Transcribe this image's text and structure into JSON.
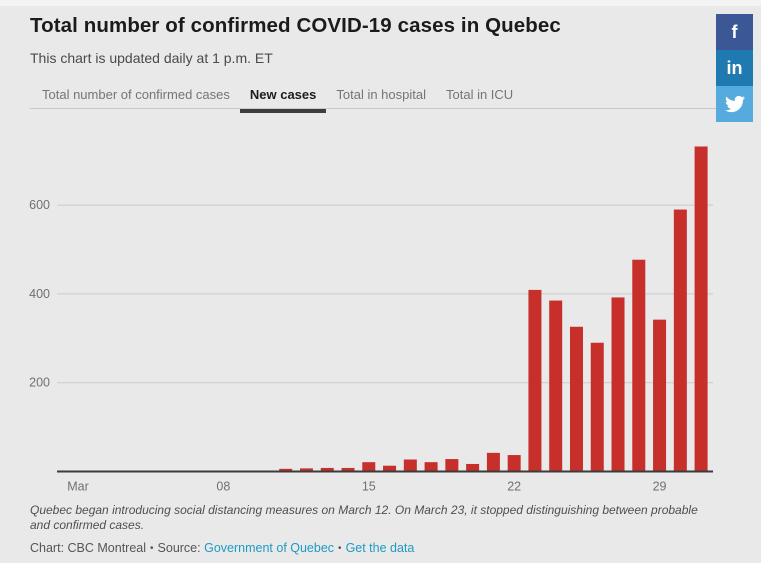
{
  "page": {
    "background": "#e9e9e9"
  },
  "header": {
    "title": "Total number of confirmed COVID-19 cases in Quebec",
    "subtitle": "This chart is updated daily at 1 p.m. ET"
  },
  "tabs": [
    {
      "label": "Total number of confirmed cases",
      "active": false
    },
    {
      "label": "New cases",
      "active": true
    },
    {
      "label": "Total in hospital",
      "active": false
    },
    {
      "label": "Total in ICU",
      "active": false
    }
  ],
  "share_buttons": [
    {
      "name": "facebook",
      "icon": "facebook-f-icon",
      "label": "f",
      "color": "#3b5795"
    },
    {
      "name": "linkedin",
      "icon": "linkedin-in-icon",
      "label": "in",
      "color": "#1e7ab0"
    },
    {
      "name": "twitter",
      "icon": "twitter-bird-icon",
      "label": "",
      "color": "#55abde"
    }
  ],
  "chart_data": {
    "type": "bar",
    "series_label": "New cases",
    "unit": "new COVID-19 cases per day, March 2020",
    "days": [
      11,
      12,
      13,
      14,
      15,
      16,
      17,
      18,
      19,
      20,
      21,
      22,
      23,
      24,
      25,
      26,
      27,
      28,
      29,
      30,
      31
    ],
    "values": [
      6,
      7,
      8,
      8,
      21,
      13,
      27,
      21,
      28,
      17,
      42,
      37,
      409,
      385,
      326,
      290,
      392,
      477,
      342,
      590,
      732
    ],
    "x_ticks": [
      {
        "day": 1,
        "label": "Mar"
      },
      {
        "day": 8,
        "label": "08"
      },
      {
        "day": 15,
        "label": "15"
      },
      {
        "day": 22,
        "label": "22"
      },
      {
        "day": 29,
        "label": "29"
      }
    ],
    "y_ticks": [
      200,
      400,
      600
    ],
    "ylim": [
      0,
      740
    ],
    "grid": "horizontal",
    "bar_color": "#c62f2a",
    "axis_color": "#3c3c3c",
    "grid_color": "#cccccc",
    "tick_label_color": "#707070"
  },
  "footer": {
    "note": "Quebec began introducing social distancing measures on March 12. On March 23, it stopped distinguishing between probable and confirmed cases.",
    "credit": "Chart: CBC Montreal",
    "separator": "•",
    "source_label": "Source:",
    "source_link_label": "Government of Quebec",
    "data_link_label": "Get the data",
    "link_color": "#1f9ac4"
  }
}
